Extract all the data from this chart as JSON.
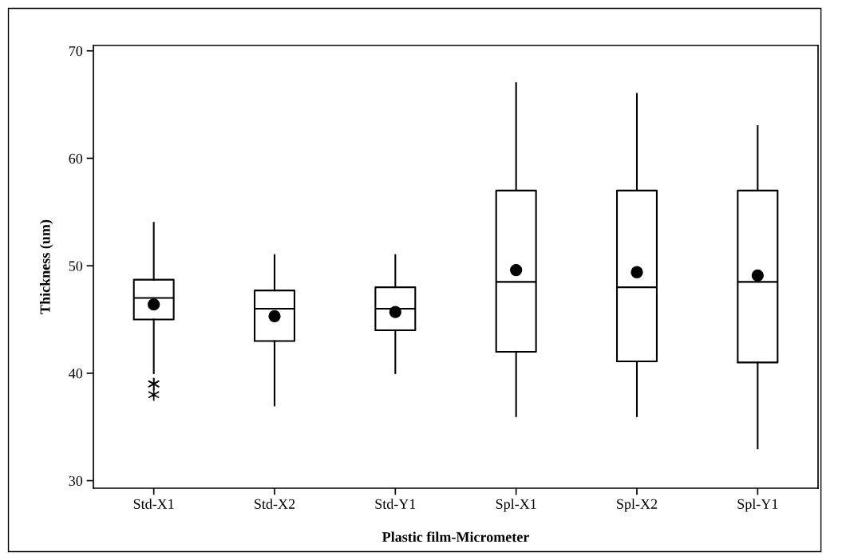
{
  "chart_data": {
    "type": "box",
    "xlabel": "Plastic film-Micrometer",
    "ylabel": "Thickness (um)",
    "categories": [
      "Std-X1",
      "Std-X2",
      "Std-Y1",
      "Spl-X1",
      "Spl-X2",
      "Spl-Y1"
    ],
    "boxes": [
      {
        "low": 40,
        "q1": 45,
        "median": 47,
        "q3": 48.7,
        "high": 54,
        "mean": 46.4,
        "outliers": [
          39,
          39,
          38
        ]
      },
      {
        "low": 37,
        "q1": 43,
        "median": 46,
        "q3": 47.7,
        "high": 51,
        "mean": 45.3
      },
      {
        "low": 40,
        "q1": 44,
        "median": 46,
        "q3": 48,
        "high": 51,
        "mean": 45.7
      },
      {
        "low": 36,
        "q1": 42,
        "median": 48.5,
        "q3": 57,
        "high": 67,
        "mean": 49.6
      },
      {
        "low": 36,
        "q1": 41.1,
        "median": 48,
        "q3": 57,
        "high": 66,
        "mean": 49.4
      },
      {
        "low": 33,
        "q1": 41,
        "median": 48.5,
        "q3": 57,
        "high": 63,
        "mean": 49.1
      }
    ],
    "color": "#000000",
    "ylim": [
      29.3,
      70.5
    ],
    "yticks": [
      30,
      40,
      50,
      60,
      70
    ],
    "grid": false
  }
}
